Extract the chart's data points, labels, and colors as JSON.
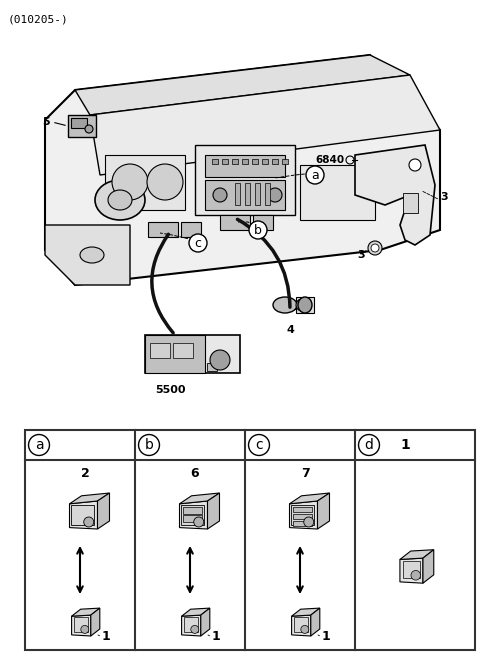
{
  "title": "(010205-)",
  "bg_color": "#ffffff",
  "line_color": "#000000",
  "part_number_5": "5",
  "part_number_5500": "5500",
  "part_number_4": "4",
  "part_number_3": "3",
  "part_number_6840": "6840",
  "label_a": "a",
  "label_b": "b",
  "label_c": "c",
  "label_d": "d",
  "num_2": "2",
  "num_6": "6",
  "num_7": "7",
  "num_1": "1",
  "gray_fill": "#d0d0d0",
  "dark_gray": "#888888",
  "light_gray": "#c0c0c0",
  "med_gray": "#a0a0a0",
  "table_border": "#333333",
  "figsize": [
    4.8,
    6.64
  ],
  "dpi": 100
}
